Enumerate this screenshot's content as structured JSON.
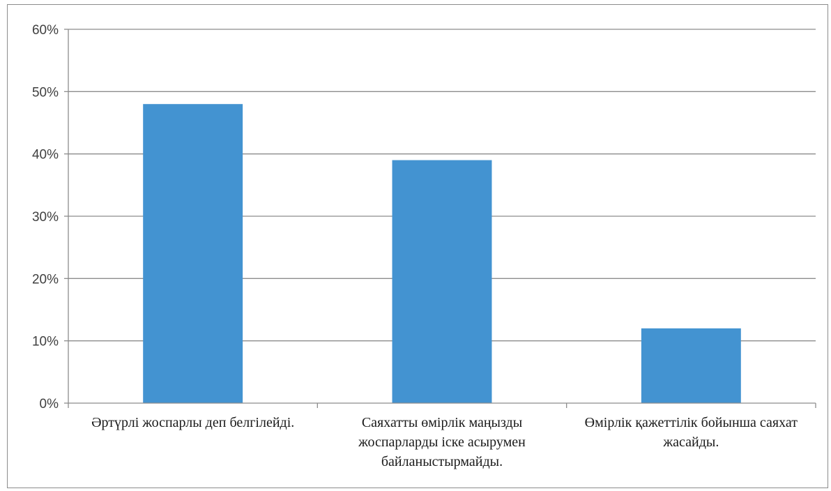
{
  "chart_data": {
    "type": "bar",
    "title": "",
    "xlabel": "",
    "ylabel": "",
    "categories": [
      "Әртүрлі жоспарлы деп белгілейді.",
      "Саяхатты өмірлік маңызды жоспарларды іске асырумен байланыстырмайды.",
      "Өмірлік қажеттілік бойынша саяхат жасайды."
    ],
    "values": [
      0.48,
      0.39,
      0.12
    ],
    "ylim": [
      0,
      0.6
    ],
    "yticks": [
      0,
      0.1,
      0.2,
      0.3,
      0.4,
      0.5,
      0.6
    ],
    "ytick_labels": [
      "0%",
      "10%",
      "20%",
      "30%",
      "40%",
      "50%",
      "60%"
    ],
    "grid": true,
    "legend": "none",
    "bar_color": "#4393d1",
    "grid_color": "#8c8c8c"
  }
}
